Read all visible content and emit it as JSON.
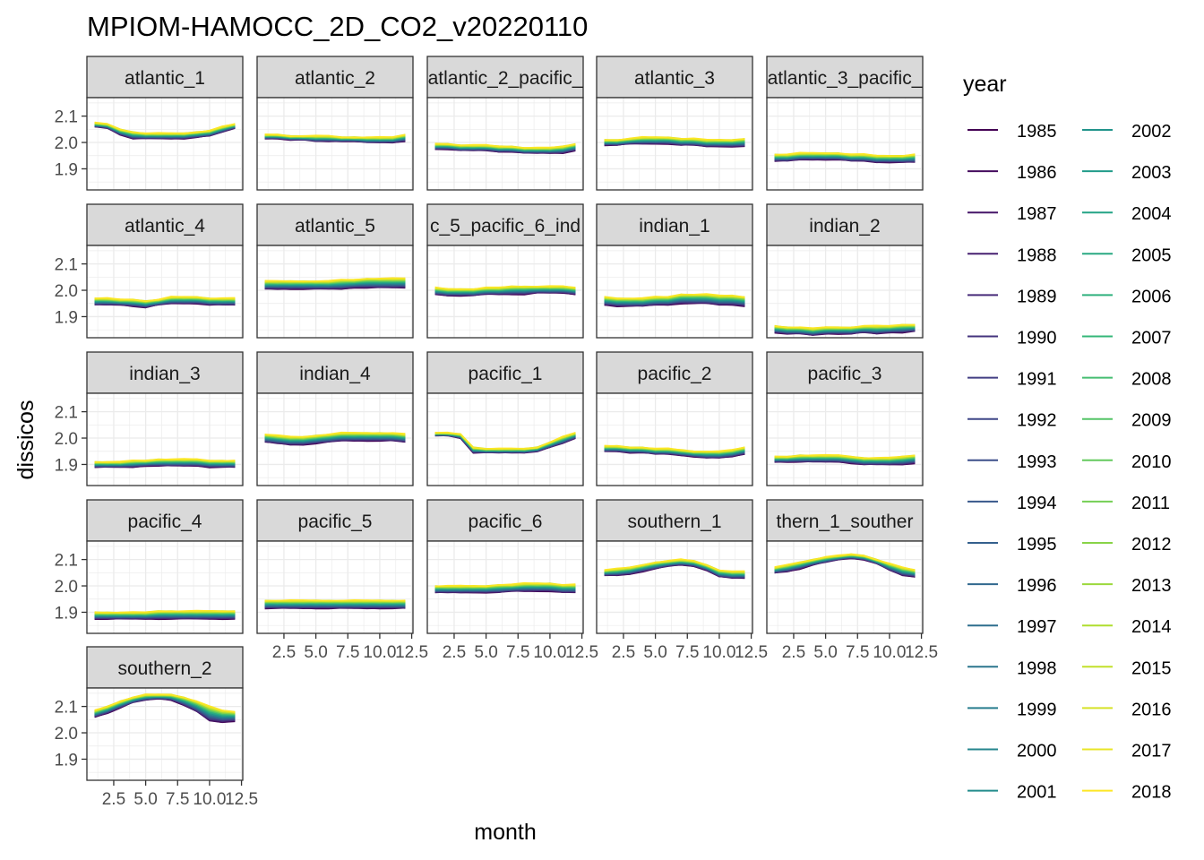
{
  "chart_data": {
    "type": "line",
    "title": "MPIOM-HAMOCC_2D_CO2_v20220110",
    "xlabel": "month",
    "ylabel": "dissicos",
    "xlim": [
      0.4,
      12.6
    ],
    "ylim": [
      1.82,
      2.17
    ],
    "x_ticks": [
      2.5,
      5.0,
      7.5,
      10.0,
      12.5
    ],
    "x_tick_labels": [
      "2.5",
      "5.0",
      "7.5",
      "10.0",
      "12.5"
    ],
    "y_ticks": [
      1.9,
      2.0,
      2.1
    ],
    "y_tick_labels": [
      "1.9",
      "2.0",
      "2.1"
    ],
    "grid": true,
    "legend": {
      "title": "year",
      "position": "right",
      "colormap": "viridis",
      "years": [
        "1985",
        "1986",
        "1987",
        "1988",
        "1989",
        "1990",
        "1991",
        "1992",
        "1993",
        "1994",
        "1995",
        "1996",
        "1997",
        "1998",
        "1999",
        "2000",
        "2001",
        "2002",
        "2003",
        "2004",
        "2005",
        "2006",
        "2007",
        "2008",
        "2009",
        "2010",
        "2011",
        "2012",
        "2013",
        "2014",
        "2015",
        "2016",
        "2017",
        "2018"
      ]
    },
    "x": [
      1,
      2,
      3,
      4,
      5,
      6,
      7,
      8,
      9,
      10,
      11,
      12
    ],
    "facets": [
      {
        "label": "atlantic_1",
        "first_year": [
          2.06,
          2.055,
          2.03,
          2.015,
          2.015,
          2.015,
          2.015,
          2.015,
          2.02,
          2.025,
          2.04,
          2.055
        ],
        "last_year": [
          2.075,
          2.07,
          2.05,
          2.04,
          2.035,
          2.035,
          2.035,
          2.035,
          2.04,
          2.045,
          2.06,
          2.07
        ]
      },
      {
        "label": "atlantic_2",
        "first_year": [
          2.015,
          2.015,
          2.01,
          2.01,
          2.005,
          2.005,
          2.005,
          2.005,
          2.0,
          2.0,
          2.0,
          2.005
        ],
        "last_year": [
          2.03,
          2.03,
          2.025,
          2.025,
          2.025,
          2.025,
          2.02,
          2.02,
          2.02,
          2.02,
          2.02,
          2.03
        ]
      },
      {
        "label": "atlantic_2_pacific_",
        "first_year": [
          1.975,
          1.975,
          1.97,
          1.97,
          1.97,
          1.965,
          1.965,
          1.96,
          1.96,
          1.96,
          1.96,
          1.97
        ],
        "last_year": [
          1.995,
          1.995,
          1.99,
          1.99,
          1.99,
          1.985,
          1.985,
          1.98,
          1.98,
          1.98,
          1.985,
          1.995
        ]
      },
      {
        "label": "atlantic_3",
        "first_year": [
          1.99,
          1.99,
          1.995,
          1.995,
          1.995,
          1.995,
          1.99,
          1.99,
          1.985,
          1.985,
          1.985,
          1.985
        ],
        "last_year": [
          2.01,
          2.01,
          2.015,
          2.02,
          2.02,
          2.02,
          2.015,
          2.015,
          2.01,
          2.01,
          2.01,
          2.015
        ]
      },
      {
        "label": "atlantic_3_pacific_",
        "first_year": [
          1.93,
          1.93,
          1.935,
          1.935,
          1.935,
          1.935,
          1.93,
          1.93,
          1.925,
          1.925,
          1.925,
          1.925
        ],
        "last_year": [
          1.955,
          1.955,
          1.96,
          1.96,
          1.96,
          1.96,
          1.955,
          1.955,
          1.95,
          1.95,
          1.95,
          1.955
        ]
      },
      {
        "label": "atlantic_4",
        "first_year": [
          1.945,
          1.945,
          1.945,
          1.94,
          1.935,
          1.945,
          1.95,
          1.95,
          1.95,
          1.945,
          1.945,
          1.945
        ],
        "last_year": [
          1.97,
          1.97,
          1.965,
          1.965,
          1.96,
          1.965,
          1.975,
          1.975,
          1.975,
          1.97,
          1.97,
          1.97
        ]
      },
      {
        "label": "atlantic_5",
        "first_year": [
          2.005,
          2.005,
          2.005,
          2.005,
          2.005,
          2.005,
          2.005,
          2.01,
          2.01,
          2.01,
          2.01,
          2.01
        ],
        "last_year": [
          2.035,
          2.035,
          2.035,
          2.035,
          2.035,
          2.035,
          2.04,
          2.04,
          2.045,
          2.045,
          2.045,
          2.045
        ]
      },
      {
        "label": "c_5_pacific_6_ind",
        "first_year": [
          1.985,
          1.98,
          1.98,
          1.98,
          1.985,
          1.985,
          1.985,
          1.985,
          1.99,
          1.99,
          1.99,
          1.985
        ],
        "last_year": [
          2.01,
          2.005,
          2.005,
          2.005,
          2.01,
          2.01,
          2.015,
          2.015,
          2.015,
          2.015,
          2.015,
          2.01
        ]
      },
      {
        "label": "indian_1",
        "first_year": [
          1.945,
          1.94,
          1.94,
          1.94,
          1.945,
          1.945,
          1.95,
          1.95,
          1.95,
          1.945,
          1.945,
          1.94
        ],
        "last_year": [
          1.975,
          1.97,
          1.97,
          1.97,
          1.975,
          1.975,
          1.985,
          1.985,
          1.985,
          1.98,
          1.98,
          1.975
        ]
      },
      {
        "label": "indian_2",
        "first_year": [
          1.84,
          1.835,
          1.835,
          1.83,
          1.835,
          1.835,
          1.835,
          1.84,
          1.835,
          1.84,
          1.84,
          1.845
        ],
        "last_year": [
          1.865,
          1.86,
          1.86,
          1.855,
          1.86,
          1.86,
          1.86,
          1.865,
          1.865,
          1.865,
          1.87,
          1.87
        ]
      },
      {
        "label": "indian_3",
        "first_year": [
          1.89,
          1.89,
          1.89,
          1.89,
          1.895,
          1.895,
          1.895,
          1.895,
          1.895,
          1.89,
          1.89,
          1.89
        ],
        "last_year": [
          1.91,
          1.91,
          1.91,
          1.915,
          1.915,
          1.92,
          1.92,
          1.92,
          1.92,
          1.915,
          1.915,
          1.915
        ]
      },
      {
        "label": "indian_4",
        "first_year": [
          1.985,
          1.98,
          1.975,
          1.975,
          1.98,
          1.985,
          1.99,
          1.99,
          1.99,
          1.99,
          1.99,
          1.985
        ],
        "last_year": [
          2.015,
          2.01,
          2.005,
          2.005,
          2.01,
          2.015,
          2.02,
          2.02,
          2.02,
          2.02,
          2.02,
          2.015
        ]
      },
      {
        "label": "pacific_1",
        "first_year": [
          2.01,
          2.01,
          2.0,
          1.945,
          1.945,
          1.945,
          1.945,
          1.945,
          1.95,
          1.965,
          1.98,
          2.0
        ],
        "last_year": [
          2.02,
          2.02,
          2.015,
          1.965,
          1.96,
          1.96,
          1.96,
          1.96,
          1.965,
          1.985,
          2.005,
          2.02
        ]
      },
      {
        "label": "pacific_2",
        "first_year": [
          1.95,
          1.95,
          1.945,
          1.945,
          1.94,
          1.94,
          1.935,
          1.93,
          1.925,
          1.925,
          1.93,
          1.94
        ],
        "last_year": [
          1.97,
          1.97,
          1.965,
          1.965,
          1.96,
          1.96,
          1.955,
          1.95,
          1.95,
          1.95,
          1.955,
          1.965
        ]
      },
      {
        "label": "pacific_3",
        "first_year": [
          1.91,
          1.91,
          1.91,
          1.91,
          1.91,
          1.91,
          1.905,
          1.9,
          1.9,
          1.9,
          1.9,
          1.905
        ],
        "last_year": [
          1.93,
          1.93,
          1.935,
          1.935,
          1.935,
          1.935,
          1.93,
          1.925,
          1.925,
          1.925,
          1.93,
          1.935
        ]
      },
      {
        "label": "pacific_4",
        "first_year": [
          1.875,
          1.875,
          1.875,
          1.875,
          1.875,
          1.875,
          1.875,
          1.875,
          1.875,
          1.875,
          1.875,
          1.875
        ],
        "last_year": [
          1.9,
          1.9,
          1.9,
          1.9,
          1.9,
          1.905,
          1.905,
          1.905,
          1.905,
          1.905,
          1.905,
          1.905
        ]
      },
      {
        "label": "pacific_5",
        "first_year": [
          1.915,
          1.915,
          1.915,
          1.915,
          1.915,
          1.915,
          1.915,
          1.915,
          1.915,
          1.915,
          1.915,
          1.915
        ],
        "last_year": [
          1.945,
          1.945,
          1.945,
          1.945,
          1.945,
          1.945,
          1.945,
          1.945,
          1.945,
          1.945,
          1.945,
          1.945
        ]
      },
      {
        "label": "pacific_6",
        "first_year": [
          1.975,
          1.975,
          1.975,
          1.975,
          1.975,
          1.975,
          1.98,
          1.98,
          1.98,
          1.98,
          1.975,
          1.975
        ],
        "last_year": [
          2.0,
          2.0,
          2.0,
          2.0,
          2.0,
          2.005,
          2.005,
          2.01,
          2.01,
          2.01,
          2.005,
          2.005
        ]
      },
      {
        "label": "southern_1",
        "first_year": [
          2.04,
          2.04,
          2.045,
          2.055,
          2.065,
          2.075,
          2.08,
          2.075,
          2.06,
          2.035,
          2.03,
          2.03
        ],
        "last_year": [
          2.06,
          2.065,
          2.07,
          2.08,
          2.09,
          2.095,
          2.1,
          2.095,
          2.08,
          2.06,
          2.055,
          2.055
        ]
      },
      {
        "label": "thern_1_souther",
        "first_year": [
          2.05,
          2.055,
          2.065,
          2.08,
          2.09,
          2.1,
          2.105,
          2.1,
          2.085,
          2.06,
          2.04,
          2.035
        ],
        "last_year": [
          2.07,
          2.08,
          2.09,
          2.1,
          2.11,
          2.115,
          2.12,
          2.115,
          2.1,
          2.085,
          2.07,
          2.06
        ]
      },
      {
        "label": "southern_2",
        "first_year": [
          2.06,
          2.075,
          2.095,
          2.115,
          2.125,
          2.13,
          2.125,
          2.105,
          2.08,
          2.045,
          2.04,
          2.045
        ],
        "last_year": [
          2.085,
          2.1,
          2.12,
          2.135,
          2.145,
          2.145,
          2.145,
          2.135,
          2.12,
          2.1,
          2.085,
          2.08
        ]
      }
    ]
  }
}
